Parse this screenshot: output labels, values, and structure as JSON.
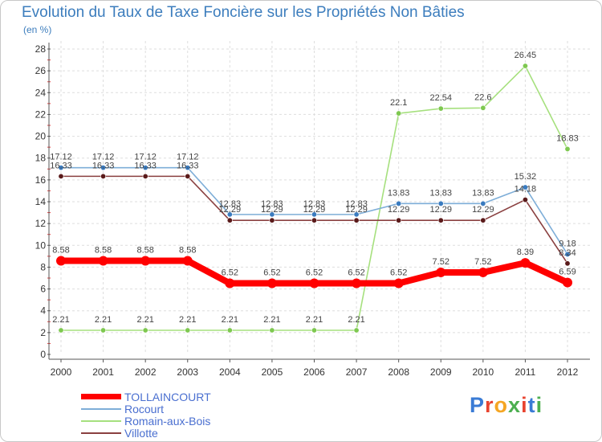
{
  "chart_data": {
    "type": "line",
    "title": "Evolution du Taux de Taxe Foncière sur les Propriétés Non Bâties",
    "subtitle": "(en %)",
    "xlabel": "",
    "ylabel": "",
    "ylim": [
      0,
      28
    ],
    "yticks": [
      0,
      2,
      4,
      6,
      8,
      10,
      12,
      14,
      16,
      18,
      20,
      22,
      24,
      26,
      28
    ],
    "grid": true,
    "legend_position": "bottom-left",
    "categories": [
      "2000",
      "2001",
      "2002",
      "2003",
      "2004",
      "2005",
      "2006",
      "2007",
      "2008",
      "2009",
      "2010",
      "2011",
      "2012"
    ],
    "series": [
      {
        "name": "Romain-aux-Bois",
        "color": "#a6e07e",
        "marker": "#7ec850",
        "values": [
          2.21,
          2.21,
          2.21,
          2.21,
          2.21,
          2.21,
          2.21,
          2.21,
          22.1,
          22.54,
          22.6,
          26.45,
          18.83
        ],
        "labels": [
          "2.21",
          "2.21",
          "2.21",
          "2.21",
          "2.21",
          "2.21",
          "2.21",
          "2.21",
          "22.1",
          "22.54",
          "22.6",
          "26.45",
          "18.83"
        ]
      },
      {
        "name": "Villotte",
        "color": "#8a4040",
        "marker": "#5a1a1a",
        "values": [
          16.33,
          16.33,
          16.33,
          16.33,
          12.29,
          12.29,
          12.29,
          12.29,
          12.29,
          12.29,
          12.29,
          14.18,
          8.34
        ],
        "labels": [
          "16.33",
          "16.33",
          "16.33",
          "16.33",
          "12.29",
          "12.29",
          "12.29",
          "12.29",
          "12.29",
          "12.29",
          "12.29",
          "14.18",
          "8.34"
        ]
      },
      {
        "name": "Rocourt",
        "color": "#7eaed8",
        "marker": "#3a7bbf",
        "values": [
          17.12,
          17.12,
          17.12,
          17.12,
          12.83,
          12.83,
          12.83,
          12.83,
          13.83,
          13.83,
          13.83,
          15.32,
          9.18
        ],
        "labels": [
          "17.12",
          "17.12",
          "17.12",
          "17.12",
          "12.83",
          "12.83",
          "12.83",
          "12.83",
          "13.83",
          "13.83",
          "13.83",
          "15.32",
          "9.18"
        ]
      },
      {
        "name": "TOLLAINCOURT",
        "color": "#ff0000",
        "marker": "#ff0000",
        "values": [
          8.58,
          8.58,
          8.58,
          8.58,
          6.52,
          6.52,
          6.52,
          6.52,
          6.52,
          7.52,
          7.52,
          8.39,
          6.59
        ],
        "labels": [
          "8.58",
          "8.58",
          "8.58",
          "8.58",
          "6.52",
          "6.52",
          "6.52",
          "6.52",
          "6.52",
          "7.52",
          "7.52",
          "8.39",
          "6.59"
        ]
      }
    ],
    "legend": [
      "TOLLAINCOURT",
      "Rocourt",
      "Romain-aux-Bois",
      "Villotte"
    ]
  },
  "logo": {
    "text": "Proxiti",
    "letter_colors": [
      "#3a7bd5",
      "#e8432f",
      "#f5a623",
      "#4caf50",
      "#e8432f",
      "#3a7bd5",
      "#4caf50"
    ]
  }
}
